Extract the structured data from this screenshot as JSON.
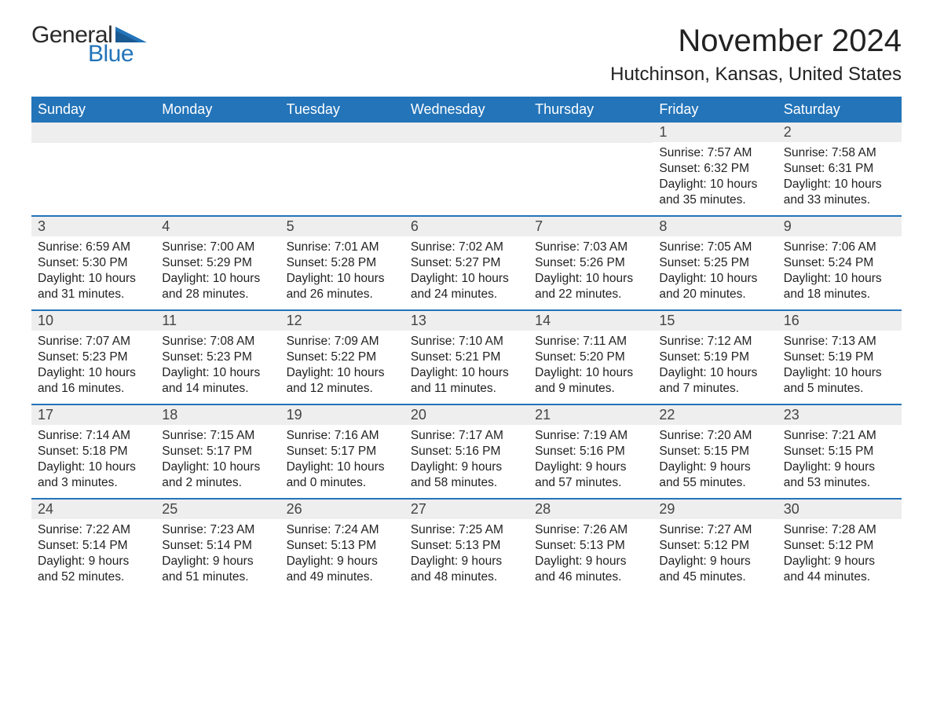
{
  "brand": {
    "word1": "General",
    "word2": "Blue",
    "word1_color": "#2a2a2a",
    "word2_color": "#2374b9",
    "flag_color": "#2374b9"
  },
  "header": {
    "month_title": "November 2024",
    "location": "Hutchinson, Kansas, United States"
  },
  "style": {
    "header_bg": "#2374b9",
    "header_text": "#ffffff",
    "daynum_bg": "#eeeeee",
    "week_border": "#2374b9",
    "body_text": "#222222",
    "title_fontsize": 40,
    "location_fontsize": 24,
    "weekday_fontsize": 18,
    "daynum_fontsize": 18,
    "cell_fontsize": 15.5
  },
  "calendar": {
    "type": "table",
    "weekdays": [
      "Sunday",
      "Monday",
      "Tuesday",
      "Wednesday",
      "Thursday",
      "Friday",
      "Saturday"
    ],
    "weeks": [
      [
        null,
        null,
        null,
        null,
        null,
        {
          "n": "1",
          "sunrise": "Sunrise: 7:57 AM",
          "sunset": "Sunset: 6:32 PM",
          "dl1": "Daylight: 10 hours",
          "dl2": "and 35 minutes."
        },
        {
          "n": "2",
          "sunrise": "Sunrise: 7:58 AM",
          "sunset": "Sunset: 6:31 PM",
          "dl1": "Daylight: 10 hours",
          "dl2": "and 33 minutes."
        }
      ],
      [
        {
          "n": "3",
          "sunrise": "Sunrise: 6:59 AM",
          "sunset": "Sunset: 5:30 PM",
          "dl1": "Daylight: 10 hours",
          "dl2": "and 31 minutes."
        },
        {
          "n": "4",
          "sunrise": "Sunrise: 7:00 AM",
          "sunset": "Sunset: 5:29 PM",
          "dl1": "Daylight: 10 hours",
          "dl2": "and 28 minutes."
        },
        {
          "n": "5",
          "sunrise": "Sunrise: 7:01 AM",
          "sunset": "Sunset: 5:28 PM",
          "dl1": "Daylight: 10 hours",
          "dl2": "and 26 minutes."
        },
        {
          "n": "6",
          "sunrise": "Sunrise: 7:02 AM",
          "sunset": "Sunset: 5:27 PM",
          "dl1": "Daylight: 10 hours",
          "dl2": "and 24 minutes."
        },
        {
          "n": "7",
          "sunrise": "Sunrise: 7:03 AM",
          "sunset": "Sunset: 5:26 PM",
          "dl1": "Daylight: 10 hours",
          "dl2": "and 22 minutes."
        },
        {
          "n": "8",
          "sunrise": "Sunrise: 7:05 AM",
          "sunset": "Sunset: 5:25 PM",
          "dl1": "Daylight: 10 hours",
          "dl2": "and 20 minutes."
        },
        {
          "n": "9",
          "sunrise": "Sunrise: 7:06 AM",
          "sunset": "Sunset: 5:24 PM",
          "dl1": "Daylight: 10 hours",
          "dl2": "and 18 minutes."
        }
      ],
      [
        {
          "n": "10",
          "sunrise": "Sunrise: 7:07 AM",
          "sunset": "Sunset: 5:23 PM",
          "dl1": "Daylight: 10 hours",
          "dl2": "and 16 minutes."
        },
        {
          "n": "11",
          "sunrise": "Sunrise: 7:08 AM",
          "sunset": "Sunset: 5:23 PM",
          "dl1": "Daylight: 10 hours",
          "dl2": "and 14 minutes."
        },
        {
          "n": "12",
          "sunrise": "Sunrise: 7:09 AM",
          "sunset": "Sunset: 5:22 PM",
          "dl1": "Daylight: 10 hours",
          "dl2": "and 12 minutes."
        },
        {
          "n": "13",
          "sunrise": "Sunrise: 7:10 AM",
          "sunset": "Sunset: 5:21 PM",
          "dl1": "Daylight: 10 hours",
          "dl2": "and 11 minutes."
        },
        {
          "n": "14",
          "sunrise": "Sunrise: 7:11 AM",
          "sunset": "Sunset: 5:20 PM",
          "dl1": "Daylight: 10 hours",
          "dl2": "and 9 minutes."
        },
        {
          "n": "15",
          "sunrise": "Sunrise: 7:12 AM",
          "sunset": "Sunset: 5:19 PM",
          "dl1": "Daylight: 10 hours",
          "dl2": "and 7 minutes."
        },
        {
          "n": "16",
          "sunrise": "Sunrise: 7:13 AM",
          "sunset": "Sunset: 5:19 PM",
          "dl1": "Daylight: 10 hours",
          "dl2": "and 5 minutes."
        }
      ],
      [
        {
          "n": "17",
          "sunrise": "Sunrise: 7:14 AM",
          "sunset": "Sunset: 5:18 PM",
          "dl1": "Daylight: 10 hours",
          "dl2": "and 3 minutes."
        },
        {
          "n": "18",
          "sunrise": "Sunrise: 7:15 AM",
          "sunset": "Sunset: 5:17 PM",
          "dl1": "Daylight: 10 hours",
          "dl2": "and 2 minutes."
        },
        {
          "n": "19",
          "sunrise": "Sunrise: 7:16 AM",
          "sunset": "Sunset: 5:17 PM",
          "dl1": "Daylight: 10 hours",
          "dl2": "and 0 minutes."
        },
        {
          "n": "20",
          "sunrise": "Sunrise: 7:17 AM",
          "sunset": "Sunset: 5:16 PM",
          "dl1": "Daylight: 9 hours",
          "dl2": "and 58 minutes."
        },
        {
          "n": "21",
          "sunrise": "Sunrise: 7:19 AM",
          "sunset": "Sunset: 5:16 PM",
          "dl1": "Daylight: 9 hours",
          "dl2": "and 57 minutes."
        },
        {
          "n": "22",
          "sunrise": "Sunrise: 7:20 AM",
          "sunset": "Sunset: 5:15 PM",
          "dl1": "Daylight: 9 hours",
          "dl2": "and 55 minutes."
        },
        {
          "n": "23",
          "sunrise": "Sunrise: 7:21 AM",
          "sunset": "Sunset: 5:15 PM",
          "dl1": "Daylight: 9 hours",
          "dl2": "and 53 minutes."
        }
      ],
      [
        {
          "n": "24",
          "sunrise": "Sunrise: 7:22 AM",
          "sunset": "Sunset: 5:14 PM",
          "dl1": "Daylight: 9 hours",
          "dl2": "and 52 minutes."
        },
        {
          "n": "25",
          "sunrise": "Sunrise: 7:23 AM",
          "sunset": "Sunset: 5:14 PM",
          "dl1": "Daylight: 9 hours",
          "dl2": "and 51 minutes."
        },
        {
          "n": "26",
          "sunrise": "Sunrise: 7:24 AM",
          "sunset": "Sunset: 5:13 PM",
          "dl1": "Daylight: 9 hours",
          "dl2": "and 49 minutes."
        },
        {
          "n": "27",
          "sunrise": "Sunrise: 7:25 AM",
          "sunset": "Sunset: 5:13 PM",
          "dl1": "Daylight: 9 hours",
          "dl2": "and 48 minutes."
        },
        {
          "n": "28",
          "sunrise": "Sunrise: 7:26 AM",
          "sunset": "Sunset: 5:13 PM",
          "dl1": "Daylight: 9 hours",
          "dl2": "and 46 minutes."
        },
        {
          "n": "29",
          "sunrise": "Sunrise: 7:27 AM",
          "sunset": "Sunset: 5:12 PM",
          "dl1": "Daylight: 9 hours",
          "dl2": "and 45 minutes."
        },
        {
          "n": "30",
          "sunrise": "Sunrise: 7:28 AM",
          "sunset": "Sunset: 5:12 PM",
          "dl1": "Daylight: 9 hours",
          "dl2": "and 44 minutes."
        }
      ]
    ]
  }
}
